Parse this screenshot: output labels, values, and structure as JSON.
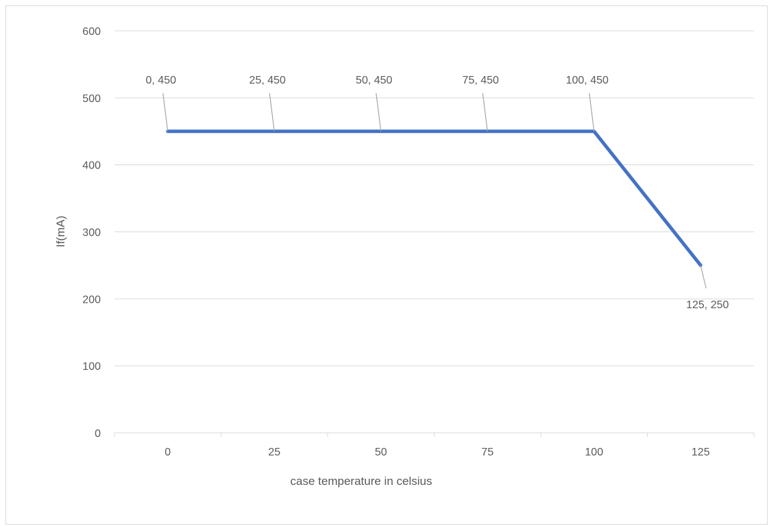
{
  "chart_data": {
    "type": "line",
    "title": "",
    "xlabel": "case temperature in celsius",
    "ylabel": "If(mA)",
    "categories": [
      "0",
      "25",
      "50",
      "75",
      "100",
      "125"
    ],
    "x": [
      0,
      25,
      50,
      75,
      100,
      125
    ],
    "series": [
      {
        "values": [
          450,
          450,
          450,
          450,
          450,
          250
        ],
        "color": "#4472c4",
        "data_labels": [
          "0, 450",
          "25, 450",
          "50, 450",
          "75, 450",
          "100, 450",
          "125, 250"
        ]
      }
    ],
    "ylim": [
      0,
      600
    ],
    "yticks": [
      0,
      100,
      200,
      300,
      400,
      500,
      600
    ],
    "grid": true,
    "legend": "none",
    "colors": {
      "line": "#4472c4",
      "grid": "#d9d9d9",
      "text": "#595959",
      "leader": "#a6a6a6"
    }
  }
}
